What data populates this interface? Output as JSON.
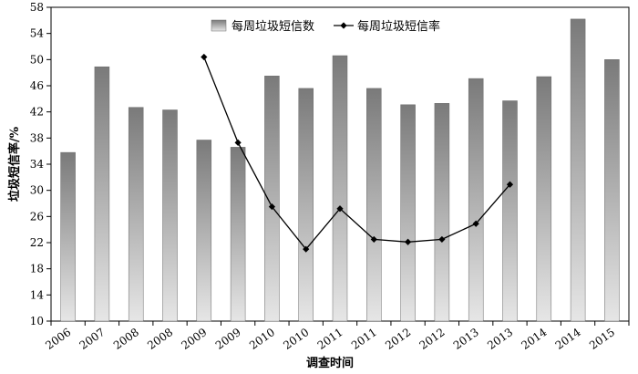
{
  "chart_data": {
    "type": "bar",
    "title": "",
    "xlabel": "调查时间",
    "ylabel": "垃圾短信率/%",
    "categories": [
      "2006",
      "2007",
      "2008",
      "2008",
      "2009",
      "2009",
      "2010",
      "2010",
      "2011",
      "2011",
      "2012",
      "2012",
      "2013",
      "2013",
      "2014",
      "2014",
      "2015"
    ],
    "ylim": [
      10,
      58
    ],
    "yticks": [
      10,
      14,
      18,
      22,
      26,
      30,
      34,
      38,
      42,
      46,
      50,
      54,
      58
    ],
    "grid": false,
    "legend_position": "top-center",
    "series": [
      {
        "name": "每周垃圾短信数",
        "type": "bar",
        "values": [
          35.8,
          48.9,
          42.7,
          42.3,
          37.7,
          36.6,
          47.5,
          45.6,
          50.6,
          45.6,
          43.1,
          43.3,
          47.1,
          43.7,
          47.4,
          56.2,
          50.0
        ]
      },
      {
        "name": "每周垃圾短信率",
        "type": "line",
        "values": [
          null,
          null,
          null,
          null,
          50.4,
          37.3,
          27.5,
          21.0,
          27.2,
          22.5,
          22.1,
          22.5,
          24.9,
          30.9,
          null,
          null,
          null
        ]
      }
    ],
    "colors": {
      "bar_top": "#7a7a7a",
      "bar_bottom": "#e6e6e6",
      "line": "#000000"
    }
  }
}
